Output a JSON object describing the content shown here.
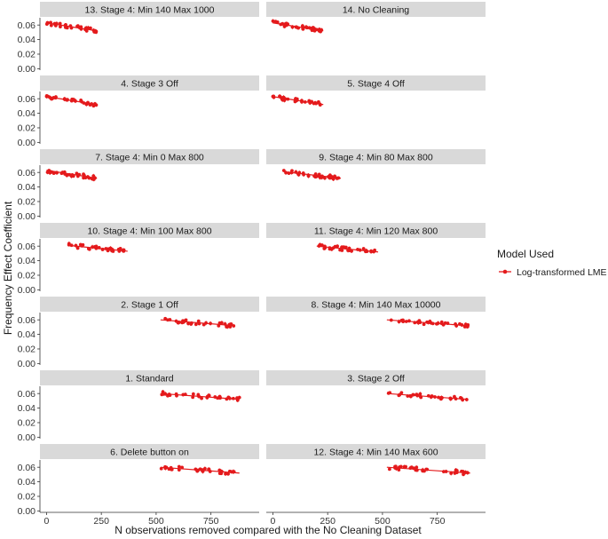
{
  "chart_data": {
    "type": "scatter",
    "xlabel": "N observations removed compared with the No Cleaning Dataset",
    "ylabel": "Frequency Effect Coefficient",
    "xlim": [
      -30,
      970
    ],
    "ylim": [
      -0.002,
      0.07
    ],
    "x_ticks": [
      0,
      250,
      500,
      750
    ],
    "y_ticks": [
      0.0,
      0.02,
      0.04,
      0.06
    ],
    "x_tick_labels": [
      "0",
      "250",
      "500",
      "750"
    ],
    "y_tick_labels": [
      "0.00",
      "0.02",
      "0.04",
      "0.06"
    ],
    "grid": false,
    "legend": {
      "title": "Model Used",
      "placement": "right",
      "entries": [
        {
          "label": "Log-transformed LME",
          "color": "#e41a1c"
        }
      ]
    },
    "series_color": "#e41a1c",
    "panels": [
      {
        "title": "13. Stage 4: Min 140 Max 1000",
        "x_range": [
          0,
          230
        ],
        "y_start": 0.063,
        "y_end": 0.052
      },
      {
        "title": "14. No Cleaning",
        "x_range": [
          0,
          230
        ],
        "y_start": 0.063,
        "y_end": 0.052
      },
      {
        "title": "4. Stage 3 Off",
        "x_range": [
          0,
          230
        ],
        "y_start": 0.063,
        "y_end": 0.052
      },
      {
        "title": "5. Stage 4 Off",
        "x_range": [
          0,
          230
        ],
        "y_start": 0.063,
        "y_end": 0.052
      },
      {
        "title": "7. Stage 4: Min 0 Max 800",
        "x_range": [
          0,
          230
        ],
        "y_start": 0.063,
        "y_end": 0.052
      },
      {
        "title": "9. Stage 4: Min 80 Max 800",
        "x_range": [
          50,
          310
        ],
        "y_start": 0.061,
        "y_end": 0.052
      },
      {
        "title": "10. Stage 4: Min 100 Max 800",
        "x_range": [
          100,
          370
        ],
        "y_start": 0.061,
        "y_end": 0.053
      },
      {
        "title": "11. Stage 4: Min 120 Max 800",
        "x_range": [
          200,
          480
        ],
        "y_start": 0.06,
        "y_end": 0.052
      },
      {
        "title": "2. Stage 1 Off",
        "x_range": [
          520,
          860
        ],
        "y_start": 0.06,
        "y_end": 0.052
      },
      {
        "title": "8. Stage 4: Min 140 Max 10000",
        "x_range": [
          520,
          890
        ],
        "y_start": 0.06,
        "y_end": 0.052
      },
      {
        "title": "1. Standard",
        "x_range": [
          520,
          880
        ],
        "y_start": 0.06,
        "y_end": 0.052
      },
      {
        "title": "3. Stage 2 Off",
        "x_range": [
          520,
          890
        ],
        "y_start": 0.06,
        "y_end": 0.052
      },
      {
        "title": "6. Delete button on",
        "x_range": [
          520,
          880
        ],
        "y_start": 0.06,
        "y_end": 0.052
      },
      {
        "title": "12. Stage 4: Min 140 Max 600",
        "x_range": [
          520,
          900
        ],
        "y_start": 0.06,
        "y_end": 0.052
      }
    ]
  }
}
